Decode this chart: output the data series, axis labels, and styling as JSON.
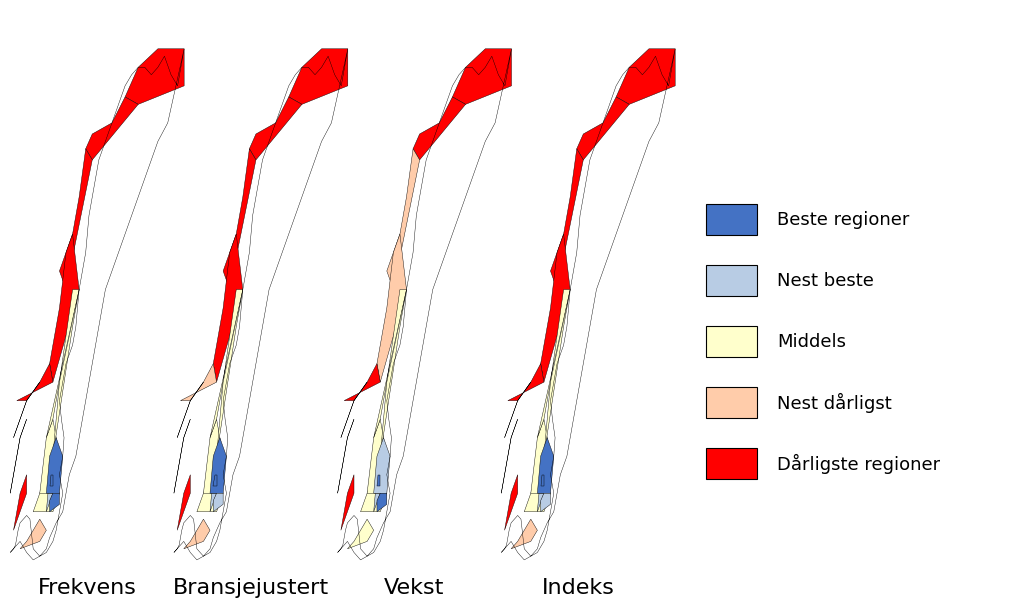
{
  "labels": [
    "Frekvens",
    "Bransjejustert",
    "Vekst",
    "Indeks"
  ],
  "legend_entries": [
    {
      "label": "Beste regioner",
      "color": "#4472C4"
    },
    {
      "label": "Nest beste",
      "color": "#B8CCE4"
    },
    {
      "label": "Middels",
      "color": "#FFFFCC"
    },
    {
      "label": "Nest dårligst",
      "color": "#FFCCAA"
    },
    {
      "label": "Dårligste regioner",
      "color": "#FF0000"
    }
  ],
  "background_color": "#FFFFFF",
  "label_fontsize": 16,
  "legend_fontsize": 13,
  "fig_width": 10.23,
  "fig_height": 6.1,
  "colors": {
    "beste": "#4472C4",
    "nest_beste": "#B8CCE4",
    "middels": "#FFFFCC",
    "nest_darligst": "#FFCCAA",
    "darligste": "#FF0000"
  }
}
